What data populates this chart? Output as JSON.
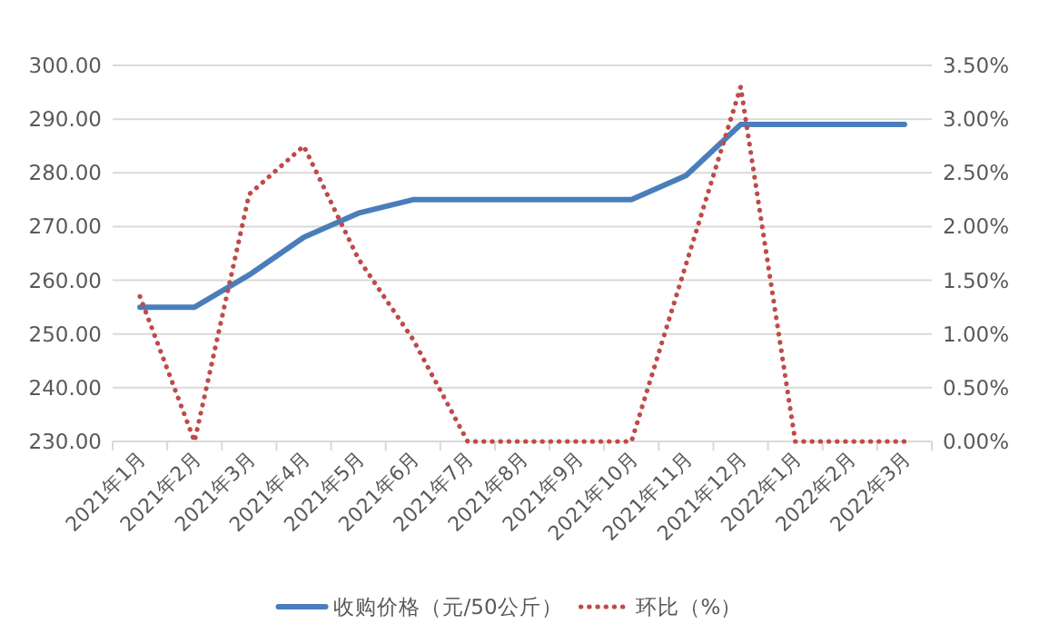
{
  "chart_data": {
    "type": "line",
    "categories": [
      "2021年1月",
      "2021年2月",
      "2021年3月",
      "2021年4月",
      "2021年5月",
      "2021年6月",
      "2021年7月",
      "2021年8月",
      "2021年9月",
      "2021年10月",
      "2021年11月",
      "2021年12月",
      "2022年1月",
      "2022年2月",
      "2022年3月"
    ],
    "series": [
      {
        "name": "收购价格（元/50公斤）",
        "color": "#4a7ebb",
        "line_style": "solid",
        "values": [
          255,
          255,
          261,
          268,
          272.5,
          275,
          275,
          275,
          275,
          275,
          279.5,
          289,
          289,
          289,
          289
        ]
      },
      {
        "name": "环比（%）",
        "color": "#be4b48",
        "line_style": "dotted",
        "axis": "y2",
        "values": [
          1.35,
          0,
          2.3,
          2.75,
          1.7,
          0.95,
          0,
          0,
          0,
          0,
          1.65,
          3.3,
          0,
          0,
          0
        ]
      }
    ],
    "ylim": [
      230,
      300
    ],
    "yticks": [
      {
        "value": 230,
        "label": "230.00"
      },
      {
        "value": 240,
        "label": "240.00"
      },
      {
        "value": 250,
        "label": "250.00"
      },
      {
        "value": 260,
        "label": "260.00"
      },
      {
        "value": 270,
        "label": "270.00"
      },
      {
        "value": 280,
        "label": "280.00"
      },
      {
        "value": 290,
        "label": "290.00"
      },
      {
        "value": 300,
        "label": "300.00"
      }
    ],
    "y2lim": [
      0,
      3.5
    ],
    "y2ticks": [
      {
        "value": 0,
        "label": "0.00%"
      },
      {
        "value": 0.5,
        "label": "0.50%"
      },
      {
        "value": 1,
        "label": "1.00%"
      },
      {
        "value": 1.5,
        "label": "1.50%"
      },
      {
        "value": 2,
        "label": "2.00%"
      },
      {
        "value": 2.5,
        "label": "2.50%"
      },
      {
        "value": 3,
        "label": "3.00%"
      },
      {
        "value": 3.5,
        "label": "3.50%"
      }
    ],
    "grid": "y",
    "legend": "bottom",
    "marker": "none"
  }
}
